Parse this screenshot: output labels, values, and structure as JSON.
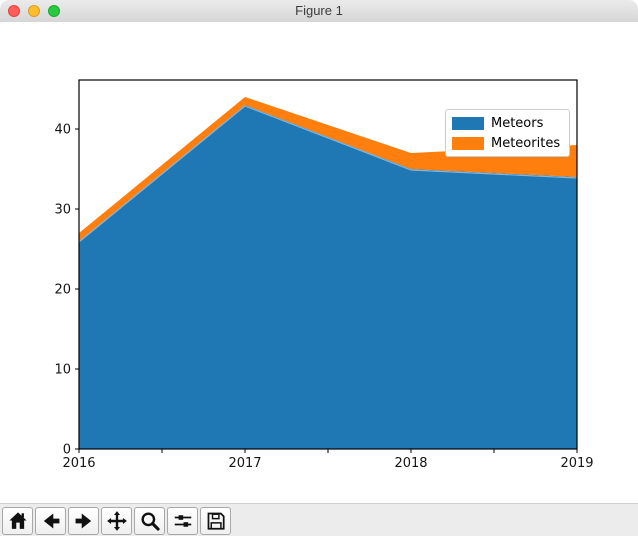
{
  "window": {
    "title": "Figure 1"
  },
  "chart_data": {
    "type": "area",
    "stacked": true,
    "x": [
      2016,
      2017,
      2018,
      2019
    ],
    "series": [
      {
        "name": "Meteors",
        "color": "#1f77b4",
        "values": [
          26,
          43,
          35,
          34
        ]
      },
      {
        "name": "Meteorites",
        "color": "#ff7f0e",
        "values": [
          1,
          1,
          2,
          4
        ]
      }
    ],
    "totals": [
      27,
      44,
      37,
      38
    ],
    "xlim": [
      2016,
      2019
    ],
    "ylim": [
      0,
      46.125
    ],
    "xticks": [
      2016,
      2017,
      2018,
      2019
    ],
    "yticks": [
      0,
      10,
      20,
      30,
      40
    ],
    "grid": false,
    "legend": {
      "position": "upper right",
      "entries": [
        "Meteors",
        "Meteorites"
      ]
    }
  },
  "toolbar": {
    "icons": [
      "home-icon",
      "back-arrow-icon",
      "forward-arrow-icon",
      "pan-move-icon",
      "zoom-magnifier-icon",
      "configure-subplots-icon",
      "save-floppy-icon"
    ]
  }
}
